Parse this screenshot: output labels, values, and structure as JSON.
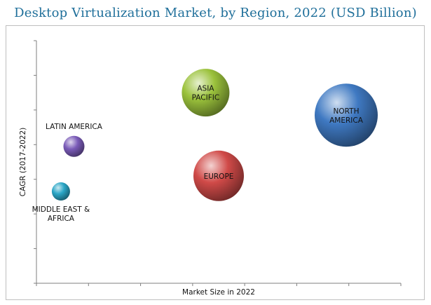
{
  "title": "Desktop Virtualization Market, by Region, 2022 (USD Billion)",
  "chart_data": {
    "type": "scatter",
    "subtype": "bubble",
    "title": "Desktop Virtualization Market, by Region, 2022 (USD Billion)",
    "xlabel": "Market Size in 2022",
    "ylabel": "CAGR (2017-2022)",
    "grid": false,
    "x_ticks": 7,
    "y_ticks": 7,
    "points": [
      {
        "name": "ASIA PACIFIC",
        "label_lines": [
          "ASIA",
          "PACIFIC"
        ],
        "x": 3.25,
        "y": 5.5,
        "size": 3.4,
        "color": "#9bc23c",
        "label_pos": "inside"
      },
      {
        "name": "NORTH AMERICA",
        "label_lines": [
          "NORTH",
          "AMERICA"
        ],
        "x": 5.95,
        "y": 4.85,
        "size": 4.5,
        "color": "#3f79c2",
        "label_pos": "inside"
      },
      {
        "name": "EUROPE",
        "label_lines": [
          "EUROPE"
        ],
        "x": 3.5,
        "y": 3.1,
        "size": 3.6,
        "color": "#d04a48",
        "label_pos": "inside"
      },
      {
        "name": "LATIN AMERICA",
        "label_lines": [
          "LATIN AMERICA"
        ],
        "x": 0.72,
        "y": 3.95,
        "size": 1.5,
        "color": "#7a5bb8",
        "label_pos": "above"
      },
      {
        "name": "MIDDLE EAST & AFRICA",
        "label_lines": [
          "MIDDLE EAST &",
          "AFRICA"
        ],
        "x": 0.47,
        "y": 2.65,
        "size": 1.3,
        "color": "#2aa6c6",
        "label_pos": "below"
      }
    ]
  }
}
